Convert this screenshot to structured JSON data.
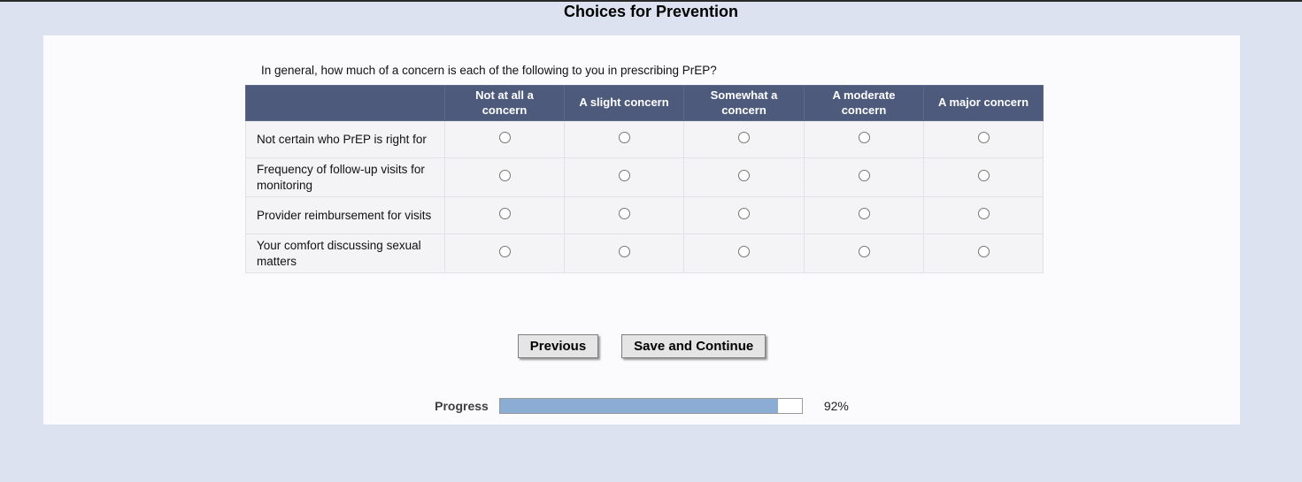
{
  "page": {
    "title": "Choices for Prevention"
  },
  "survey": {
    "question": "In general, how much of a concern is each of the following to you in prescribing PrEP?",
    "columns": [
      "Not at all a concern",
      "A slight concern",
      "Somewhat a concern",
      "A moderate concern",
      "A major concern"
    ],
    "rows": [
      "Not certain who PrEP is right for",
      "Frequency of follow-up visits for monitoring",
      "Provider reimbursement for visits",
      "Your comfort discussing sexual matters"
    ]
  },
  "buttons": {
    "previous": "Previous",
    "save_continue": "Save and Continue"
  },
  "progress": {
    "label": "Progress",
    "percent": 92,
    "percent_label": "92%"
  },
  "colors": {
    "page_background": "#dce2f0",
    "panel_background": "#fbfbfd",
    "header_background": "#4d5a7c",
    "row_background": "#f4f4f7",
    "progress_fill": "#8cadd3"
  }
}
